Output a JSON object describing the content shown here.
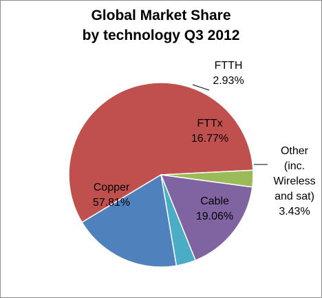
{
  "chart_data": {
    "type": "pie",
    "title_lines": [
      "Global Market Share",
      "by technology Q3 2012"
    ],
    "slices": [
      {
        "label_lines": [
          "Copper"
        ],
        "value_text": "57.81%",
        "value": 57.81,
        "color": "#c0504d"
      },
      {
        "label_lines": [
          "FTTH"
        ],
        "value_text": "2.93%",
        "value": 2.93,
        "color": "#9bbb59"
      },
      {
        "label_lines": [
          "FTTx"
        ],
        "value_text": "16.77%",
        "value": 16.77,
        "color": "#8064a2"
      },
      {
        "label_lines": [
          "Other",
          "(inc.",
          "Wireless",
          "and sat)"
        ],
        "value_text": "3.43%",
        "value": 3.43,
        "color": "#4bacc6"
      },
      {
        "label_lines": [
          "Cable"
        ],
        "value_text": "19.06%",
        "value": 19.06,
        "color": "#4f81bd"
      }
    ],
    "legend": false
  }
}
